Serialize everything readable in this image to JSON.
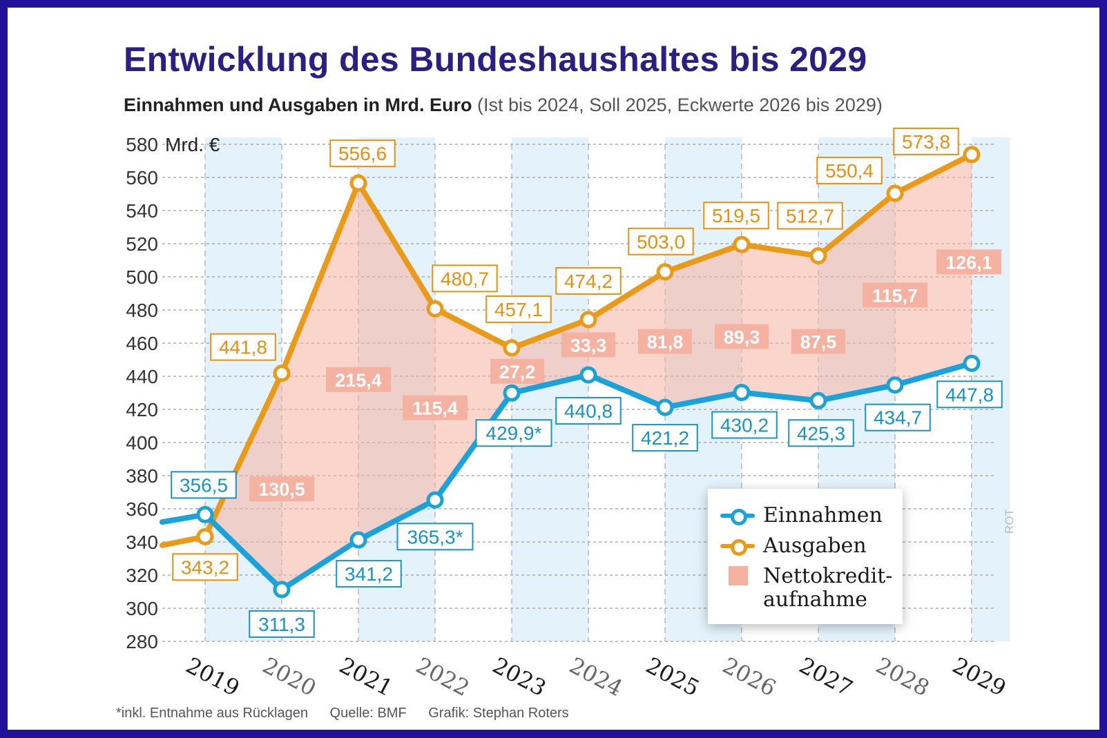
{
  "header": {
    "title": "Entwicklung des Bundeshaushaltes bis 2029",
    "subtitle_bold": "Einnahmen und Ausgaben in Mrd. Euro",
    "subtitle_note": " (Ist bis 2024, Soll 2025, Eckwerte 2026 bis 2029)"
  },
  "footer": {
    "note": "*inkl. Entnahme aus Rücklagen",
    "source": "Quelle: BMF",
    "credit": "Grafik: Stephan Roters"
  },
  "watermark": "ROT",
  "legend": {
    "einnahmen": "Einnahmen",
    "ausgaben": "Ausgaben",
    "netto_line1": "Nettokredit-",
    "netto_line2": "aufnahme"
  },
  "colors": {
    "einnahmen": "#1aa3da",
    "ausgaben": "#eb9a17",
    "netto_fill": "#f5b2a0",
    "netto_label_bg": "#f5b2a0",
    "stripe": "#e4f2fb",
    "title": "#2b1f86",
    "frame": "#22119a"
  },
  "chart_data": {
    "type": "line",
    "title": "Entwicklung des Bundeshaushaltes bis 2029",
    "subtitle": "Einnahmen und Ausgaben in Mrd. Euro (Ist bis 2024, Soll 2025, Eckwerte 2026 bis 2029)",
    "ylabel": "Mrd. €",
    "xlabel": "",
    "ylim": [
      280,
      580
    ],
    "yticks": [
      280,
      300,
      320,
      340,
      360,
      380,
      400,
      420,
      440,
      460,
      480,
      500,
      520,
      540,
      560,
      580
    ],
    "unit_label": "Mrd. €",
    "categories": [
      "2019",
      "2020",
      "2021",
      "2022",
      "2023",
      "2024",
      "2025",
      "2026",
      "2027",
      "2028",
      "2029"
    ],
    "series": [
      {
        "name": "Einnahmen",
        "values": [
          356.5,
          311.3,
          341.2,
          365.3,
          429.9,
          440.8,
          421.2,
          430.2,
          425.3,
          434.7,
          447.8
        ],
        "labels": [
          "356,5",
          "311,3",
          "341,2",
          "365,3*",
          "429,9*",
          "440,8",
          "421,2",
          "430,2",
          "425,3",
          "434,7",
          "447,8"
        ]
      },
      {
        "name": "Ausgaben",
        "values": [
          343.2,
          441.8,
          556.6,
          480.7,
          457.1,
          474.2,
          503.0,
          519.5,
          512.7,
          550.4,
          573.8
        ],
        "labels": [
          "343,2",
          "441,8",
          "556,6",
          "480,7",
          "457,1",
          "474,2",
          "503,0",
          "519,5",
          "512,7",
          "550,4",
          "573,8"
        ]
      }
    ],
    "netto": {
      "name": "Nettokreditaufnahme",
      "values": [
        130.5,
        215.4,
        115.4,
        27.2,
        33.3,
        81.8,
        89.3,
        87.5,
        115.7,
        126.1
      ],
      "labels": [
        "130,5",
        "215,4",
        "115,4",
        "27,2",
        "33,3",
        "81,8",
        "89,3",
        "87,5",
        "115,7",
        "126,1"
      ],
      "years": [
        "2020",
        "2021",
        "2022",
        "2023",
        "2024",
        "2025",
        "2026",
        "2027",
        "2028",
        "2029"
      ]
    },
    "lead_in": {
      "einnahmen_start": 352,
      "ausgaben_start": 338
    }
  }
}
